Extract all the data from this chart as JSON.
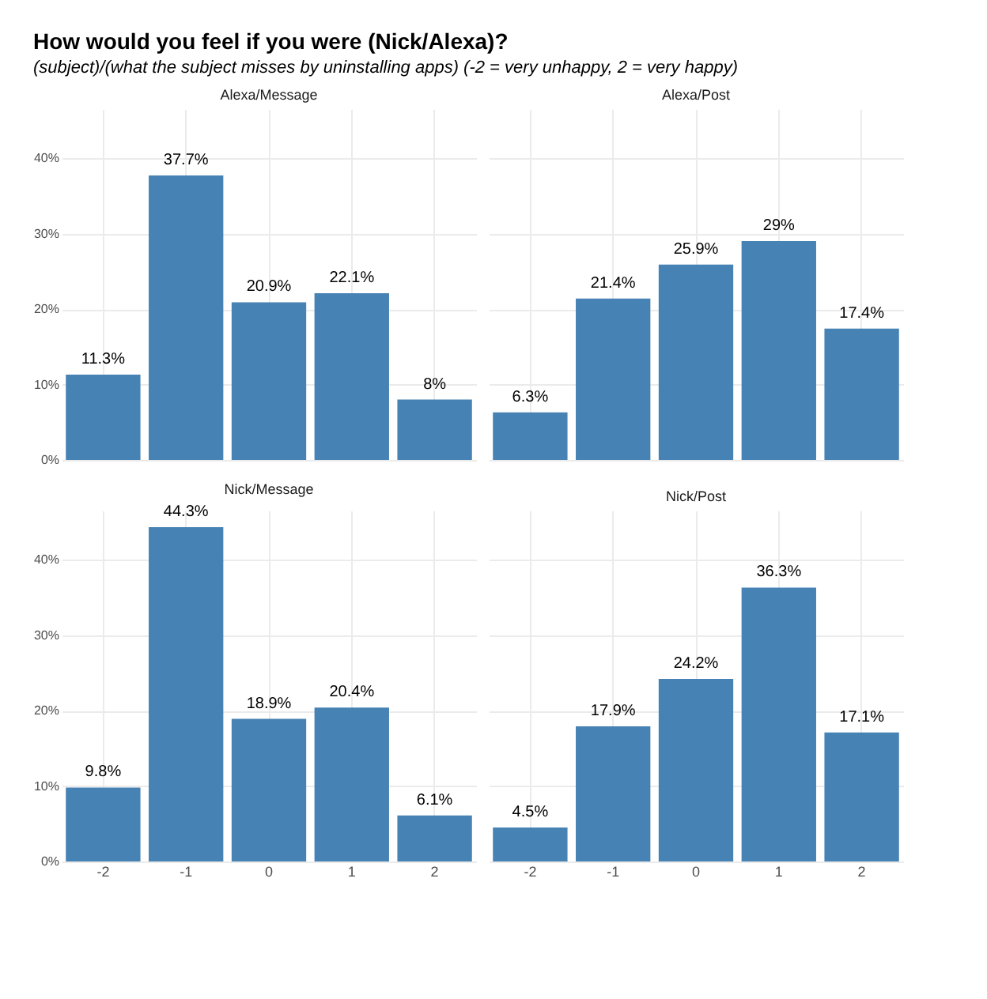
{
  "chart_data": [
    {
      "type": "other",
      "title": "How would you feel if you were (Nick/Alexa)?",
      "subtitle": "(subject)/(what the subject misses by uninstalling apps) (-2 = very unhappy, 2 = very happy)"
    },
    {
      "type": "bar",
      "title": "Alexa/Message",
      "categories": [
        "-2",
        "-1",
        "0",
        "1",
        "2"
      ],
      "values": [
        11.3,
        37.7,
        20.9,
        22.1,
        8
      ],
      "value_labels": [
        "11.3%",
        "37.7%",
        "20.9%",
        "22.1%",
        "8%"
      ],
      "color": "#4682b4",
      "ylim": [
        0,
        46.5
      ],
      "yticks": [
        {
          "value": 0,
          "label": "0%"
        },
        {
          "value": 10,
          "label": "10%"
        },
        {
          "value": 20,
          "label": "20%"
        },
        {
          "value": 30,
          "label": "30%"
        },
        {
          "value": 40,
          "label": "40%"
        }
      ],
      "grid": true,
      "tick_labels": "y"
    },
    {
      "type": "bar",
      "title": "Alexa/Post",
      "categories": [
        "-2",
        "-1",
        "0",
        "1",
        "2"
      ],
      "values": [
        6.3,
        21.4,
        25.9,
        29,
        17.4
      ],
      "value_labels": [
        "6.3%",
        "21.4%",
        "25.9%",
        "29%",
        "17.4%"
      ],
      "color": "#4682b4",
      "ylim": [
        0,
        46.5
      ],
      "yticks": [
        {
          "value": 0,
          "label": null
        },
        {
          "value": 10,
          "label": null
        },
        {
          "value": 20,
          "label": null
        },
        {
          "value": 30,
          "label": null
        },
        {
          "value": 40,
          "label": null
        }
      ],
      "grid": true,
      "tick_labels": false
    },
    {
      "type": "bar",
      "title": "Nick/Message",
      "categories": [
        "-2",
        "-1",
        "0",
        "1",
        "2"
      ],
      "values": [
        9.8,
        44.3,
        18.9,
        20.4,
        6.1
      ],
      "value_labels": [
        "9.8%",
        "44.3%",
        "18.9%",
        "20.4%",
        "6.1%"
      ],
      "color": "#4682b4",
      "ylim": [
        0,
        46.5
      ],
      "yticks": [
        {
          "value": 0,
          "label": "0%"
        },
        {
          "value": 10,
          "label": "10%"
        },
        {
          "value": 20,
          "label": "20%"
        },
        {
          "value": 30,
          "label": "30%"
        },
        {
          "value": 40,
          "label": "40%"
        }
      ],
      "grid": true
    },
    {
      "type": "bar",
      "title": "Nick/Post",
      "categories": [
        "-2",
        "-1",
        "0",
        "1",
        "2"
      ],
      "values": [
        4.5,
        17.9,
        24.2,
        36.3,
        17.1
      ],
      "value_labels": [
        "4.5%",
        "17.9%",
        "24.2%",
        "36.3%",
        "17.1%"
      ],
      "color": "#4682b4",
      "ylim": [
        0,
        46.5
      ],
      "yticks": [
        {
          "value": 0,
          "label": null
        },
        {
          "value": 10,
          "label": null
        },
        {
          "value": 20,
          "label": null
        },
        {
          "value": 30,
          "label": null
        },
        {
          "value": 40,
          "label": null
        }
      ],
      "grid": true,
      "tick_labels": "x"
    }
  ]
}
